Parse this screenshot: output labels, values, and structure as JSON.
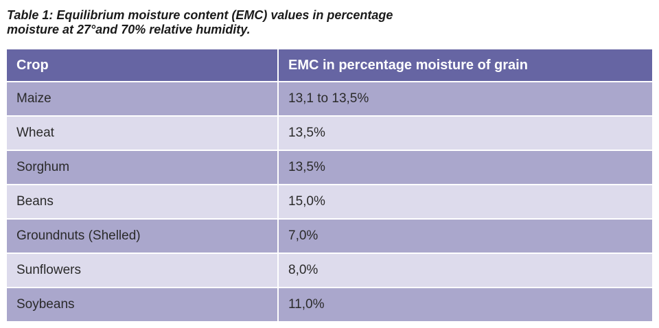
{
  "caption": {
    "line1": "Table 1: Equilibrium moisture content (EMC) values in percentage",
    "line2": "moisture at 27°and 70% relative humidity."
  },
  "table": {
    "headers": [
      "Crop",
      "EMC in percentage moisture of grain"
    ],
    "rows": [
      {
        "crop": "Maize",
        "emc": "13,1 to 13,5%"
      },
      {
        "crop": "Wheat",
        "emc": "13,5%"
      },
      {
        "crop": "Sorghum",
        "emc": "13,5%"
      },
      {
        "crop": "Beans",
        "emc": "15,0%"
      },
      {
        "crop": "Groundnuts (Shelled)",
        "emc": "7,0%"
      },
      {
        "crop": "Sunflowers",
        "emc": "8,0%"
      },
      {
        "crop": "Soybeans",
        "emc": "11,0%"
      }
    ]
  },
  "colors": {
    "header_bg": "#6665a3",
    "row_dark": "#aaa7cc",
    "row_light": "#dddbec",
    "header_text": "#ffffff"
  }
}
